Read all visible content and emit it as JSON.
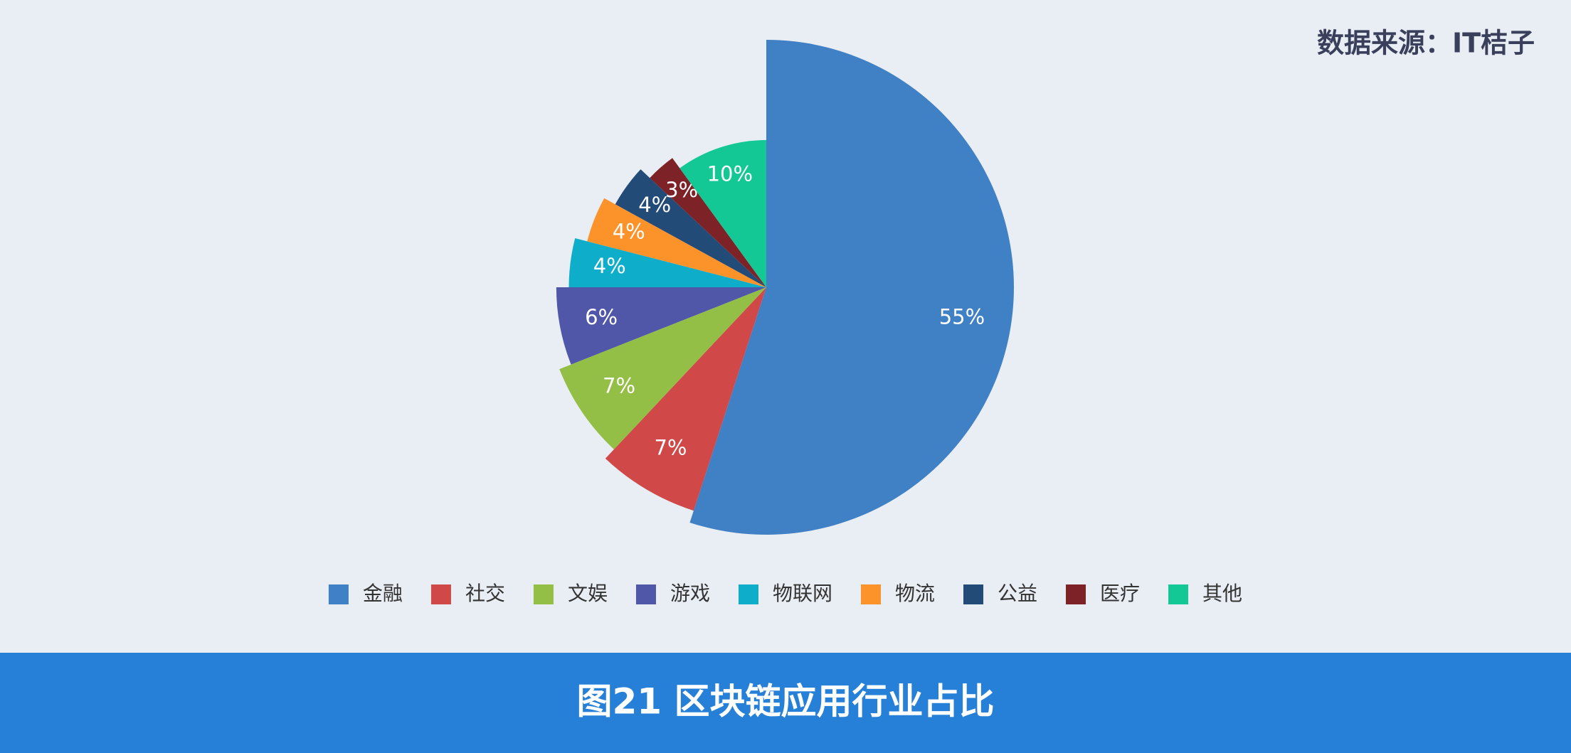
{
  "chart_data": {
    "type": "pie",
    "title": "图21 区块链应用行业占比",
    "source": "数据来源：IT桔子",
    "categories": [
      "金融",
      "社交",
      "文娱",
      "游戏",
      "物联网",
      "物流",
      "公益",
      "医疗",
      "其他"
    ],
    "values": [
      55,
      7,
      7,
      6,
      4,
      4,
      4,
      3,
      10
    ],
    "value_labels": [
      "55%",
      "7%",
      "7%",
      "6%",
      "4%",
      "4%",
      "4%",
      "3%",
      "10%"
    ],
    "colors": [
      "#4080c4",
      "#d04848",
      "#94bf46",
      "#5057a8",
      "#0eaecb",
      "#fc922a",
      "#234b78",
      "#7d2226",
      "#13c895"
    ]
  }
}
